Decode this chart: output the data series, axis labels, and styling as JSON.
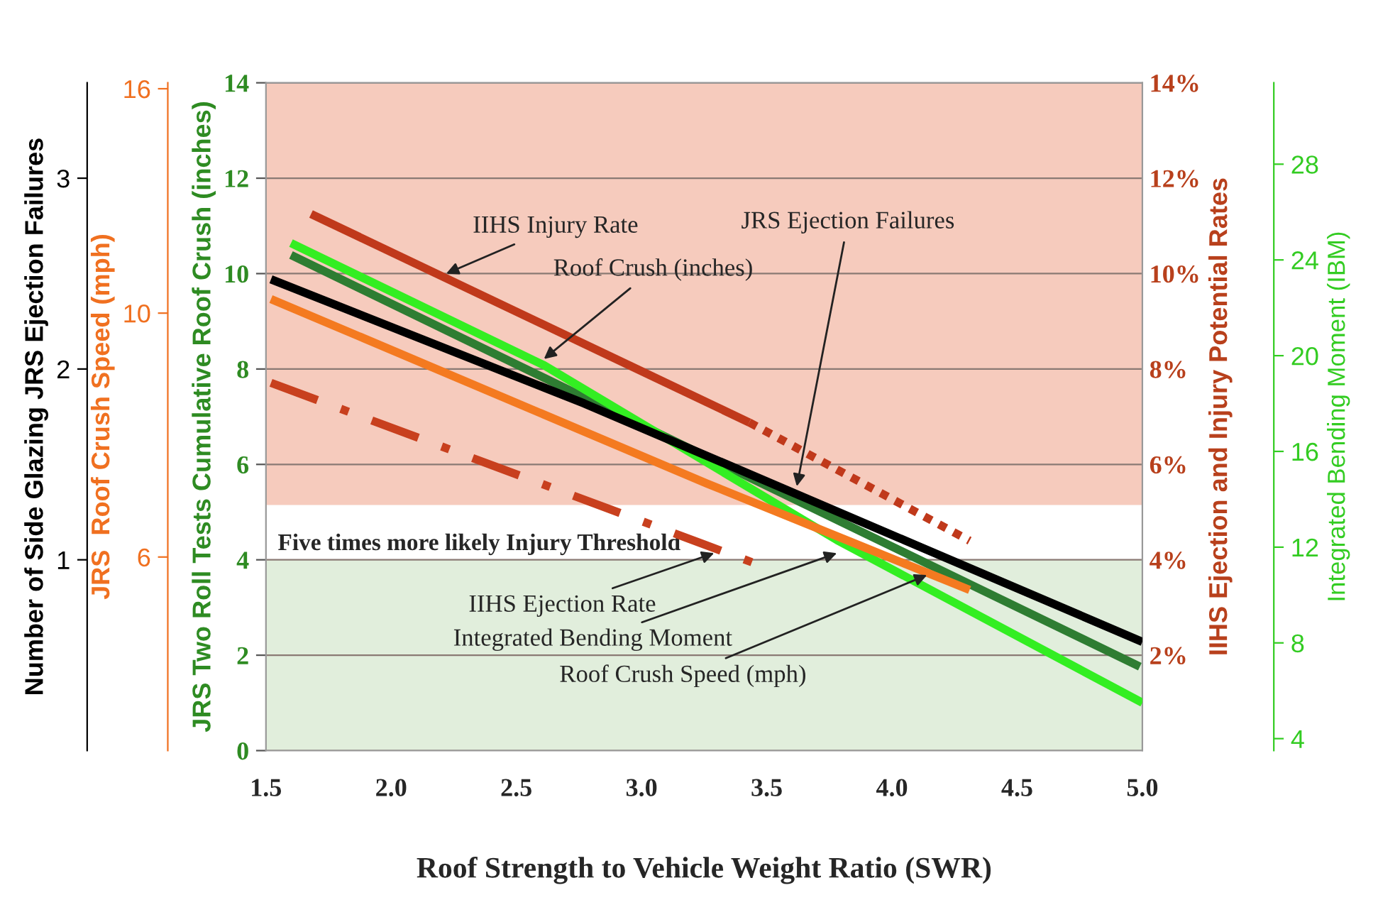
{
  "chart_data": [
    {
      "type": "line",
      "xlabel": "Roof Strength to Vehicle Weight Ratio (SWR)",
      "ylabel": "JRS Two Roll Tests Cumulative Roof Crush (inches)",
      "y2label": "IIHS Ejection and Injury Potential Rates",
      "y3label": "Integrated Bending Moment (IBM)",
      "xlim": [
        1.5,
        5.0
      ],
      "xticks": [
        {
          "value": 1.5,
          "label": "1.5"
        },
        {
          "value": 2.0,
          "label": "2.0"
        },
        {
          "value": 2.5,
          "label": "2.5"
        },
        {
          "value": 3.0,
          "label": "3.0"
        },
        {
          "value": 3.5,
          "label": "3.5"
        },
        {
          "value": 4.0,
          "label": "4.0"
        },
        {
          "value": 4.5,
          "label": "4.5"
        },
        {
          "value": 5.0,
          "label": "5.0"
        }
      ],
      "ylim": [
        0,
        14
      ],
      "yticks": [
        0,
        2,
        4,
        6,
        8,
        10,
        12,
        14
      ],
      "y2lim": [
        0,
        14
      ],
      "y2ticks": [
        {
          "value": 2,
          "label": "2%"
        },
        {
          "value": 4,
          "label": "4%"
        },
        {
          "value": 6,
          "label": "6%"
        },
        {
          "value": 8,
          "label": "8%"
        },
        {
          "value": 10,
          "label": "10%"
        },
        {
          "value": 12,
          "label": "12%"
        },
        {
          "value": 14,
          "label": "14%"
        }
      ],
      "y3lim": [
        3.5,
        31.4
      ],
      "y3ticks": [
        4,
        8,
        12,
        16,
        20,
        24,
        28
      ],
      "grid": "y",
      "series": [
        {
          "axis": "y2",
          "color": "#c0391b",
          "line_style": "solid",
          "x": [
            1.68,
            3.43
          ],
          "values": [
            11.25,
            6.88
          ]
        },
        {
          "axis": "y2",
          "color": "#c0391b",
          "line_style": "dotted",
          "x": [
            3.43,
            4.31
          ],
          "values": [
            6.88,
            4.4
          ]
        },
        {
          "axis": "y2",
          "color": "#c8401e",
          "line_style": "dashdot",
          "x": [
            1.52,
            3.45
          ],
          "values": [
            7.71,
            3.93
          ]
        },
        {
          "color": "#2e7d32",
          "line_style": "solid",
          "x": [
            1.6,
            3.26,
            4.99
          ],
          "values": [
            10.39,
            6.16,
            1.76
          ]
        },
        {
          "axis": "y3",
          "color": "#33ee22",
          "line_style": "solid",
          "x": [
            1.6,
            2.61,
            3.78,
            5.0
          ],
          "values": [
            24.7,
            19.6,
            12.3,
            5.5
          ]
        }
      ],
      "bands": [
        {
          "axis": "y",
          "from": 5.15,
          "to": 14,
          "color": "#f6cbbd",
          "label": "Five times more likely Injury Threshold"
        },
        {
          "axis": "y",
          "from": 0,
          "to": 4,
          "color": "#e1eedc"
        }
      ],
      "annotations": [
        {
          "text": "IIHS Injury Rate",
          "x": 2.22,
          "y": 10.0
        },
        {
          "text": "Roof Crush (inches)",
          "x": 2.61,
          "y": 8.21
        },
        {
          "text": "IIHS Ejection Rate",
          "x": 3.29,
          "y": 4.14
        },
        {
          "text": "Integrated Bending Moment",
          "x": 3.78,
          "y": 4.14
        }
      ]
    },
    {
      "type": "line",
      "ylabel": "Number of Side Glazing JRS Ejection Failures",
      "y2label": "JRS  Roof Crush Speed (mph)",
      "xlim": [
        1.5,
        5.0
      ],
      "ylim": [
        0,
        3.5
      ],
      "yticks": [
        1,
        2,
        3
      ],
      "y2lim": [
        4,
        16.2
      ],
      "y2ticks": [
        6,
        10,
        16
      ],
      "log": "y2",
      "tick_labels": "y",
      "series": [
        {
          "axis": "y2",
          "color": "#f47a20",
          "line_style": "solid",
          "x": [
            1.52,
            3.26,
            4.31
          ],
          "values": [
            10.3,
            7.0,
            5.6
          ]
        },
        {
          "color": "#000000",
          "line_style": "solid",
          "x": [
            1.52,
            2.77,
            5.0
          ],
          "values": [
            2.47,
            1.82,
            0.57
          ]
        }
      ],
      "annotations": [
        {
          "text": "JRS Ejection Failures",
          "x": 3.62,
          "y": 1.385
        },
        {
          "text": "Roof Crush Speed (mph)",
          "x": 4.14,
          "y": 0.92
        }
      ]
    }
  ]
}
